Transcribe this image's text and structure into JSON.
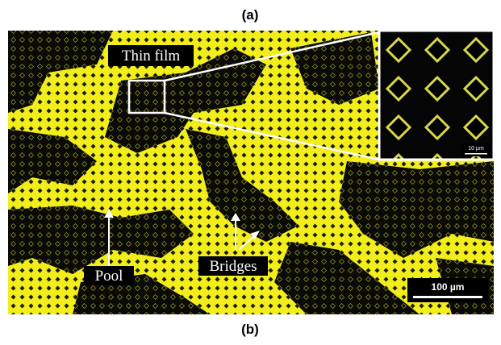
{
  "panel_labels": [
    "(a)",
    "(b)"
  ],
  "annotations": {
    "thin_film": "Thin film",
    "pool": "Pool",
    "bridges": "Bridges"
  },
  "scale_bars": {
    "main": "100 µm",
    "inset": "10 µm"
  }
}
